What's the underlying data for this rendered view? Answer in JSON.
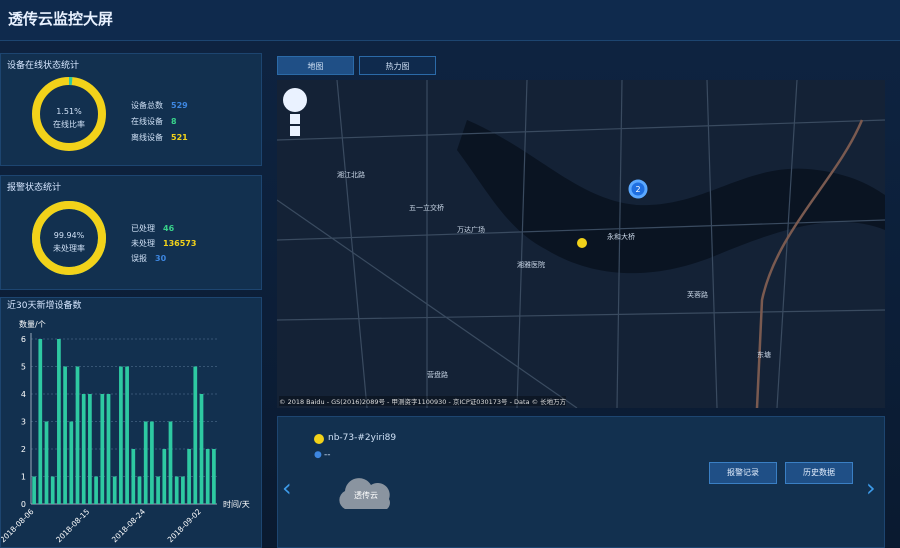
{
  "header": {
    "title": "透传云监控大屏"
  },
  "device_status": {
    "title": "设备在线状态统计",
    "rate": {
      "value": 1.51,
      "label": "1.51%"
    },
    "rate_caption": "在线比率",
    "items": [
      {
        "label": "设备总数",
        "value": "529"
      },
      {
        "label": "在线设备",
        "value": "8"
      },
      {
        "label": "离线设备",
        "value": "521"
      }
    ]
  },
  "alarm_status": {
    "title": "报警状态统计",
    "rate": {
      "value": 99.94,
      "label": "99.94%"
    },
    "rate_caption": "未处理率",
    "items": [
      {
        "label": "已处理",
        "value": "46"
      },
      {
        "label": "未处理",
        "value": "136573"
      },
      {
        "label": "误报",
        "value": "30"
      }
    ]
  },
  "chart_data": {
    "type": "bar",
    "title": "近30天新增设备数",
    "ylabel": "数量/个",
    "xlabel": "时间/天",
    "color": "#2ec9a2",
    "categories": [
      "2018-08-06",
      null,
      null,
      null,
      null,
      null,
      null,
      null,
      null,
      "2018-08-15",
      null,
      null,
      null,
      null,
      null,
      null,
      null,
      null,
      "2018-08-24",
      null,
      null,
      null,
      null,
      null,
      null,
      null,
      null,
      "2018-09-02",
      null,
      null
    ],
    "values": [
      1,
      6,
      3,
      1,
      6,
      5,
      3,
      5,
      4,
      4,
      1,
      4,
      4,
      1,
      5,
      5,
      2,
      1,
      3,
      3,
      1,
      2,
      3,
      1,
      1,
      2,
      5,
      4,
      2,
      2
    ],
    "ylim": [
      0,
      6
    ],
    "yticks": [
      0,
      1,
      2,
      3,
      4,
      5,
      6
    ],
    "grid": true
  },
  "tabs": [
    "地图",
    "热力图"
  ],
  "map": {
    "labels": [
      "五一立交桥",
      "湘江北路",
      "永和大桥",
      "万达广场",
      "湘雅医院",
      "营盘路",
      "芙蓉路",
      "东塘"
    ],
    "cluster": "2",
    "copyright": "© 2018 Baidu - GS(2016)2089号 - 甲测资字1100930 - 京ICP证030173号 - Data © 长地万方"
  },
  "device": {
    "name": "nb-73-#2yiri89",
    "location": "--",
    "cloud": "透传云",
    "buttons": [
      "报警记录",
      "历史数据"
    ]
  }
}
